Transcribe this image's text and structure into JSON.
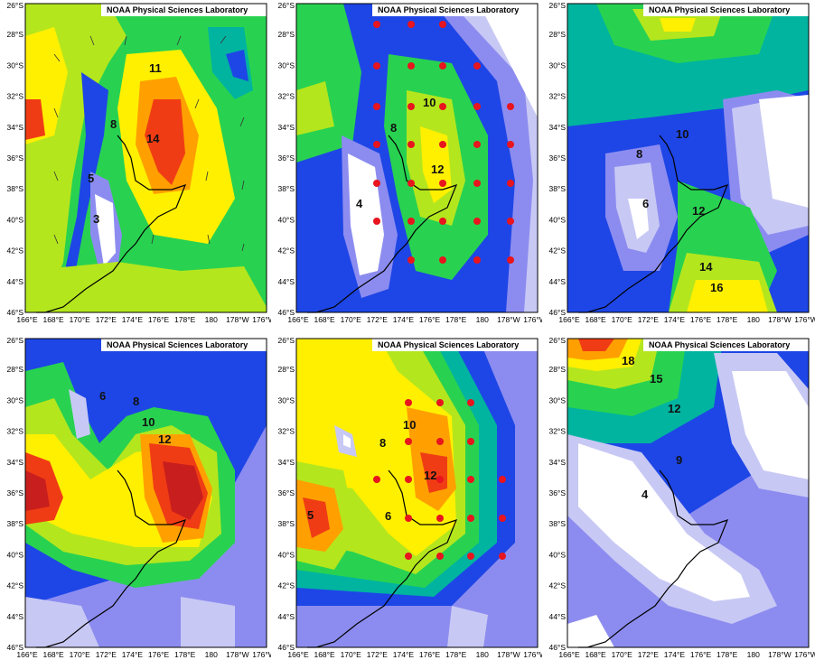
{
  "figure": {
    "credit": "NOAA Physical Sciences Laboratory",
    "x_ticks": [
      "166°E",
      "168°E",
      "170°E",
      "172°E",
      "174°E",
      "176°E",
      "178°E",
      "180",
      "178°W",
      "176°W"
    ],
    "y_ticks": [
      "26°S",
      "28°S",
      "30°S",
      "32°S",
      "34°S",
      "36°S",
      "38°S",
      "40°S",
      "42°S",
      "44°S",
      "46°S"
    ],
    "colors": {
      "white": "#ffffff",
      "lavender": "#c8c8f5",
      "periwinkle": "#8c8cf0",
      "blue": "#1e46e6",
      "teal": "#00b4a0",
      "green": "#28d250",
      "lime": "#b4e61e",
      "yellow": "#fff000",
      "orange": "#ffa000",
      "red": "#f03c14",
      "darkred": "#c81e1e",
      "dot": "#e8141e",
      "coast": "#000000"
    }
  },
  "panels": [
    {
      "id": "a",
      "labels": [
        "11",
        "14",
        "8",
        "5",
        "3"
      ]
    },
    {
      "id": "b",
      "labels": [
        "10",
        "8",
        "12",
        "4"
      ]
    },
    {
      "id": "c",
      "labels": [
        "10",
        "8",
        "6",
        "12",
        "14",
        "16"
      ]
    },
    {
      "id": "d",
      "labels": [
        "6",
        "8",
        "10",
        "12"
      ]
    },
    {
      "id": "e",
      "labels": [
        "10",
        "8",
        "12",
        "5",
        "6"
      ]
    },
    {
      "id": "f",
      "labels": [
        "18",
        "15",
        "12",
        "9",
        "4"
      ]
    }
  ]
}
